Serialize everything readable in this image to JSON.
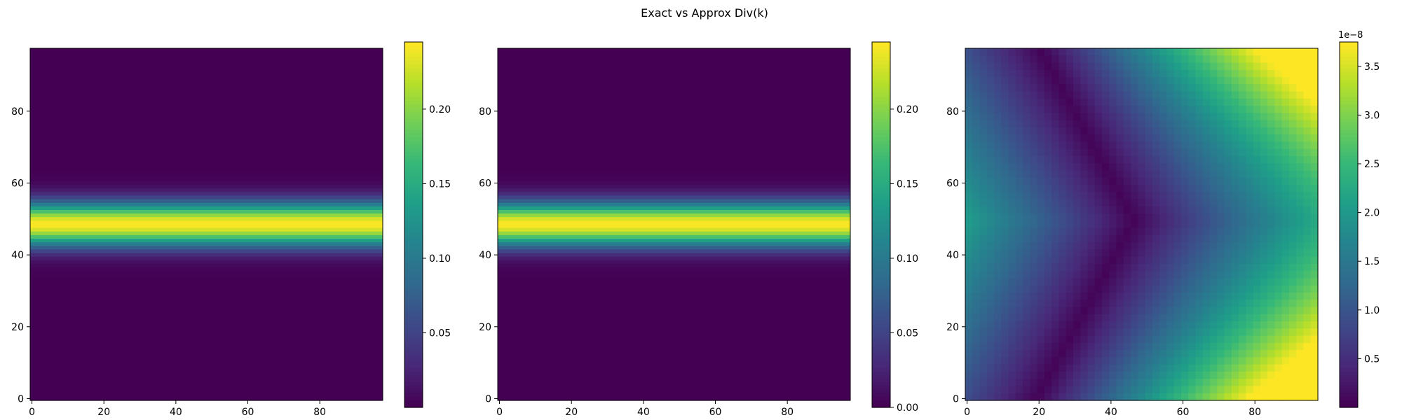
{
  "figure_title": "Exact vs Approx Div(k)",
  "colors": {
    "viridis": [
      "#440154",
      "#482878",
      "#3e4989",
      "#31688e",
      "#26828e",
      "#1f9e89",
      "#35b779",
      "#6ece58",
      "#b5de2b",
      "#fde725"
    ]
  },
  "chart_data": [
    {
      "type": "heatmap",
      "title": "",
      "description": "Exact divergence: horizontal band peaking at row ~48, constant across columns",
      "grid_size": [
        98,
        98
      ],
      "xlim": [
        -0.5,
        97.5
      ],
      "ylim": [
        97.5,
        -0.5
      ],
      "x_ticks": [
        0,
        20,
        40,
        60,
        80
      ],
      "y_ticks": [
        0,
        20,
        40,
        60,
        80
      ],
      "band_center_row": 48.5,
      "band_sigma": 4.2,
      "peak_value": 0.245,
      "colorbar": {
        "min": 0.0,
        "max": 0.245,
        "ticks": [
          0.05,
          0.1,
          0.15,
          0.2
        ],
        "tick_labels": [
          "0.05",
          "0.10",
          "0.15",
          "0.20"
        ],
        "offset_label": ""
      }
    },
    {
      "type": "heatmap",
      "title": "",
      "description": "Approximate divergence: same horizontal band",
      "grid_size": [
        98,
        98
      ],
      "xlim": [
        -0.5,
        97.5
      ],
      "ylim": [
        97.5,
        -0.5
      ],
      "x_ticks": [
        0,
        20,
        40,
        60,
        80
      ],
      "y_ticks": [
        0,
        20,
        40,
        60,
        80
      ],
      "band_center_row": 48.5,
      "band_sigma": 4.2,
      "peak_value": 0.245,
      "colorbar": {
        "min": 0.0,
        "max": 0.245,
        "ticks": [
          0.0,
          0.05,
          0.1,
          0.15,
          0.2
        ],
        "tick_labels": [
          "0.00",
          "0.05",
          "0.10",
          "0.15",
          "0.20"
        ],
        "offset_label": ""
      }
    },
    {
      "type": "heatmap",
      "title": "",
      "description": "Absolute difference: V-shaped minimum, larger at right corners",
      "grid_size": [
        98,
        98
      ],
      "xlim": [
        -0.5,
        97.5
      ],
      "ylim": [
        97.5,
        -0.5
      ],
      "x_ticks": [
        0,
        20,
        40,
        60,
        80
      ],
      "y_ticks": [
        0,
        20,
        40,
        60,
        80
      ],
      "colorbar": {
        "min": 0.0,
        "max": 3.75,
        "ticks": [
          0.5,
          1.0,
          1.5,
          2.0,
          2.5,
          3.0,
          3.5
        ],
        "tick_labels": [
          "0.5",
          "1.0",
          "1.5",
          "2.0",
          "2.5",
          "3.0",
          "3.5"
        ],
        "offset_label": "1e−8"
      }
    }
  ]
}
